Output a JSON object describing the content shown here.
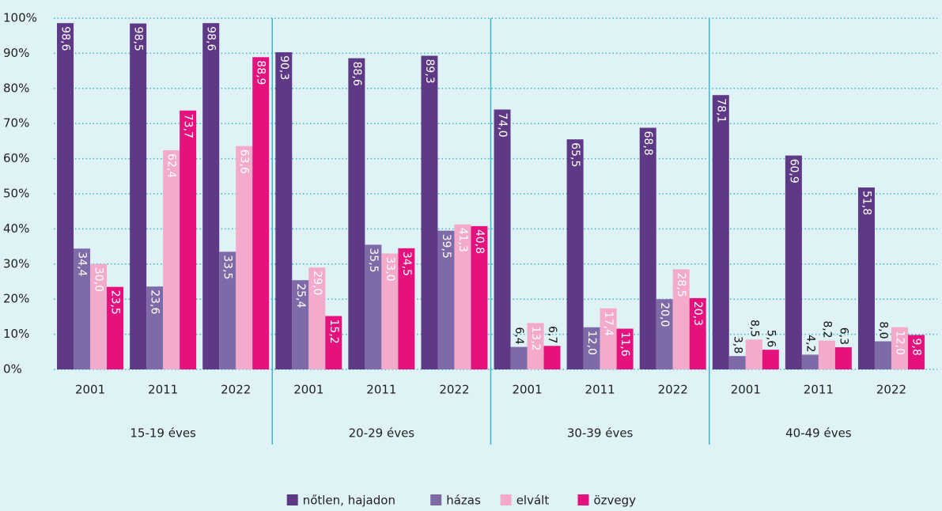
{
  "chart_data": {
    "type": "bar",
    "categories": [
      "2001",
      "2011",
      "2022",
      "2001",
      "2011",
      "2022",
      "2001",
      "2011",
      "2022",
      "2001",
      "2011",
      "2022"
    ],
    "groups": [
      "15-19 éves",
      "20-29 éves",
      "30-39 éves",
      "40-49 éves"
    ],
    "series": [
      {
        "name": "nőtlen, hajadon",
        "color": "#5e3a86",
        "values": [
          98.6,
          98.5,
          98.6,
          90.3,
          88.6,
          89.3,
          74.0,
          65.5,
          68.8,
          78.1,
          60.9,
          51.8
        ],
        "value_labels": [
          "98,6",
          "98,5",
          "98,6",
          "90,3",
          "88,6",
          "89,3",
          "74,0",
          "65,5",
          "68,8",
          "78,1",
          "60,9",
          "51,8"
        ]
      },
      {
        "name": "házas",
        "color": "#7f6aa8",
        "values": [
          34.4,
          23.6,
          33.5,
          25.4,
          35.5,
          39.5,
          6.4,
          12.0,
          20.0,
          3.8,
          4.2,
          8.0
        ],
        "value_labels": [
          "34,4",
          "23,6",
          "33,5",
          "25,4",
          "35,5",
          "39,5",
          "6,4",
          "12,0",
          "20,0",
          "3,8",
          "4,2",
          "8,0"
        ]
      },
      {
        "name": "elvált",
        "color": "#f4aacb",
        "values": [
          30.0,
          62.4,
          63.6,
          29.0,
          33.0,
          41.3,
          13.2,
          17.4,
          28.5,
          8.5,
          8.2,
          12.0
        ],
        "value_labels": [
          "30,0",
          "62,4",
          "63,6",
          "29,0",
          "33,0",
          "41,3",
          "13,2",
          "17,4",
          "28,5",
          "8,5",
          "8,2",
          "12,0"
        ]
      },
      {
        "name": "özvegy",
        "color": "#e5127d",
        "values": [
          23.5,
          73.7,
          88.9,
          15.2,
          34.5,
          40.8,
          6.7,
          11.6,
          20.3,
          5.6,
          6.3,
          9.8
        ],
        "value_labels": [
          "23,5",
          "73,7",
          "88,9",
          "15,2",
          "34,5",
          "40,8",
          "6,7",
          "11,6",
          "20,3",
          "5,6",
          "6,3",
          "9,8"
        ]
      }
    ],
    "ylim": [
      0,
      100
    ],
    "yticks": [
      {
        "value": 0,
        "label": "0%"
      },
      {
        "value": 10,
        "label": "10%"
      },
      {
        "value": 20,
        "label": "20%"
      },
      {
        "value": 30,
        "label": "30%"
      },
      {
        "value": 40,
        "label": "40%"
      },
      {
        "value": 50,
        "label": "50%"
      },
      {
        "value": 60,
        "label": "60%"
      },
      {
        "value": 70,
        "label": "70%"
      },
      {
        "value": 80,
        "label": "80%"
      },
      {
        "value": 90,
        "label": "90%"
      },
      {
        "value": 100,
        "label": "100%"
      }
    ],
    "grid": true,
    "legend": "bottom"
  }
}
